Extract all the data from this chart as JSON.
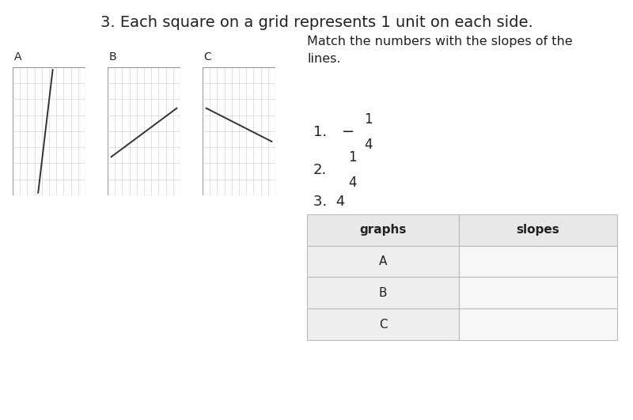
{
  "title": "3. Each square on a grid represents 1 unit on each side.",
  "instruction": "Match the numbers with the slopes of the\nlines.",
  "graph_labels": [
    "A",
    "B",
    "C"
  ],
  "grid_cols": 10,
  "grid_rows": 8,
  "lines": {
    "A": {
      "x": [
        0.35,
        0.55
      ],
      "y": [
        0.02,
        0.98
      ]
    },
    "B": {
      "x": [
        0.05,
        0.95
      ],
      "y": [
        0.3,
        0.68
      ]
    },
    "C": {
      "x": [
        0.05,
        0.95
      ],
      "y": [
        0.68,
        0.42
      ]
    }
  },
  "table_headers": [
    "graphs",
    "slopes"
  ],
  "table_rows": [
    "A",
    "B",
    "C"
  ],
  "grid_color": "#cccccc",
  "grid_border_color": "#999999",
  "bg_color": "#ffffff",
  "table_header_bg": "#e8e8e8",
  "table_cell_left_bg": "#eeeeee",
  "table_cell_right_bg": "#f7f7f7",
  "table_border_color": "#bbbbbb",
  "line_color": "#333333",
  "text_color": "#222222",
  "title_fontsize": 14,
  "label_fontsize": 10,
  "instruction_fontsize": 11.5,
  "slope_fontsize": 13
}
